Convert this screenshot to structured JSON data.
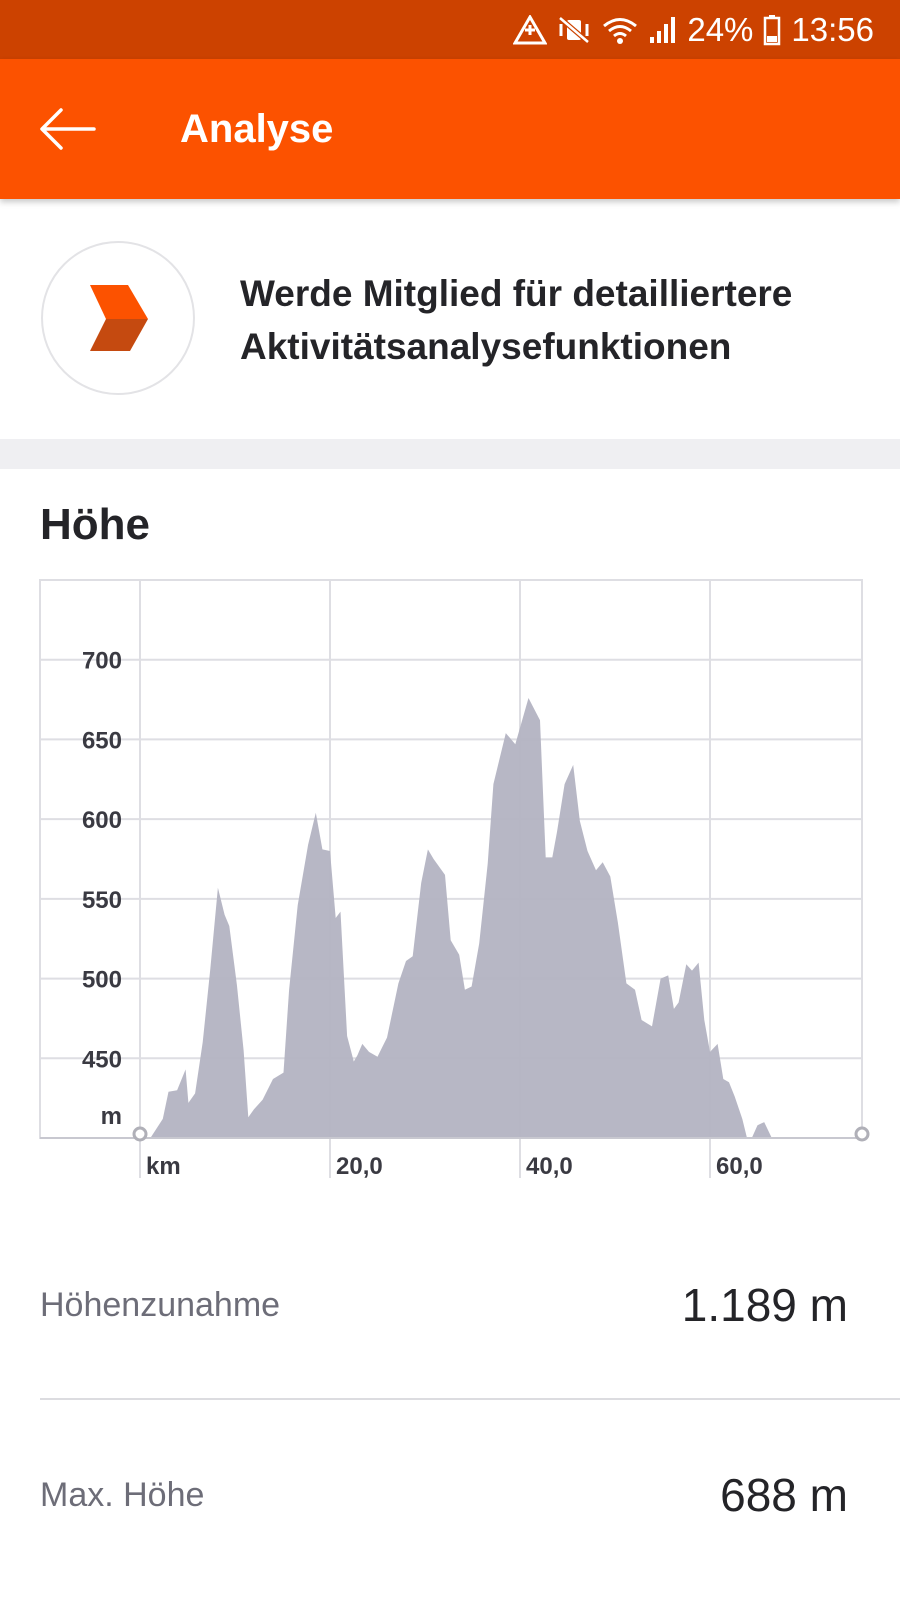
{
  "status_bar": {
    "battery": "24%",
    "time": "13:56",
    "icons": [
      "data-saver-icon",
      "mute-vibrate-icon",
      "wifi-icon",
      "signal-icon",
      "battery-icon"
    ]
  },
  "app_bar": {
    "title": "Analyse",
    "back_icon": "arrow-left-icon"
  },
  "promo": {
    "text": "Werde Mitglied für detailliertere Aktivitätsanalysefunktionen",
    "icon": "strava-summit-chevron-icon"
  },
  "section": {
    "title": "Höhe"
  },
  "colors": {
    "status_bar": "#cc4200",
    "app_bar": "#fc5200",
    "area_fill": "#b3b3c2",
    "grid": "#dedee3"
  },
  "chart_data": {
    "type": "area",
    "x_unit": "km",
    "y_unit": "m",
    "x_tick_labels": [
      "20,0",
      "40,0",
      "60,0"
    ],
    "x_ticks": [
      20,
      40,
      60
    ],
    "y_ticks": [
      450,
      500,
      550,
      600,
      650,
      700
    ],
    "xlim": [
      0,
      76
    ],
    "ylim": [
      400,
      750
    ],
    "grid": true,
    "x": [
      1.1,
      2.4,
      3.0,
      3.9,
      4.8,
      5.1,
      5.8,
      6.6,
      7.4,
      8.2,
      8.9,
      9.4,
      10.2,
      10.9,
      11.4,
      12.0,
      12.9,
      14.0,
      15.1,
      15.7,
      16.6,
      17.7,
      18.5,
      19.2,
      20.0,
      20.6,
      21.1,
      21.8,
      22.5,
      22.9,
      23.4,
      24.1,
      25.0,
      26.0,
      27.2,
      28.0,
      28.7,
      29.6,
      30.3,
      30.9,
      32.1,
      32.7,
      33.6,
      34.2,
      34.9,
      35.7,
      36.6,
      37.2,
      38.5,
      39.5,
      40.9,
      42.1,
      42.7,
      43.4,
      43.9,
      44.7,
      45.6,
      46.3,
      47.1,
      48.0,
      48.7,
      49.5,
      50.3,
      51.2,
      52.1,
      52.8,
      53.9,
      54.8,
      55.6,
      56.2,
      56.7,
      57.5,
      58.1,
      58.8,
      59.4,
      60.0,
      60.8,
      61.4,
      62.0,
      62.6,
      63.4,
      63.9,
      64.4,
      65.0,
      65.7,
      66.5,
      67.1,
      67.6,
      68.1,
      68.7,
      69.5,
      70.0,
      70.7,
      71.4,
      71.9,
      72.5,
      73.4,
      73.9,
      74.4,
      74.7,
      75.0
    ],
    "y": [
      400,
      412,
      429,
      430,
      443,
      422,
      428,
      460,
      506,
      557,
      540,
      533,
      496,
      455,
      413,
      418,
      424,
      437,
      441,
      493,
      546,
      584,
      604,
      581,
      580,
      538,
      542,
      464,
      448,
      452,
      459,
      454,
      451,
      463,
      497,
      511,
      514,
      560,
      581,
      575,
      565,
      524,
      515,
      493,
      495,
      522,
      572,
      622,
      654,
      647,
      676,
      662,
      576,
      576,
      592,
      622,
      634,
      599,
      580,
      568,
      573,
      564,
      535,
      497,
      493,
      474,
      470,
      500,
      502,
      481,
      485,
      509,
      505,
      510,
      474,
      454,
      459,
      437,
      435,
      426,
      412,
      400,
      400,
      408,
      410,
      400,
      400,
      400,
      400,
      400,
      400,
      400,
      400,
      400,
      400,
      400,
      400,
      400,
      400,
      400,
      400
    ]
  },
  "stats": [
    {
      "label": "Höhenzunahme",
      "value": "1.189 m"
    },
    {
      "label": "Max. Höhe",
      "value": "688 m"
    }
  ]
}
